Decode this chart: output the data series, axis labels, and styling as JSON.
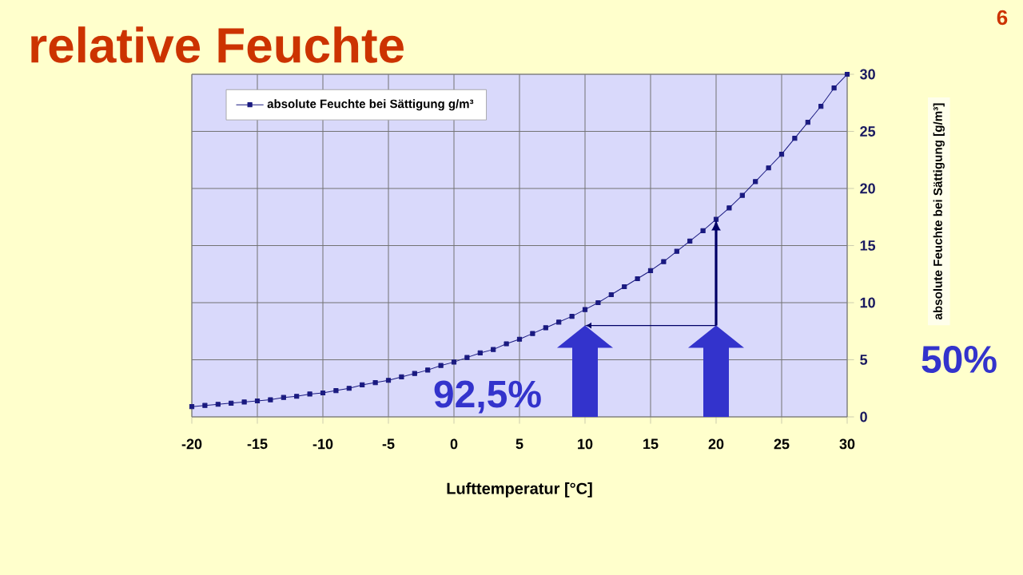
{
  "chart_data": {
    "type": "line",
    "title": "relative Feuchte",
    "xlabel": "Lufttemperatur [°C]",
    "ylabel": "absolute Feuchte bei Sättigung [g/m³]",
    "x": [
      -20,
      -19,
      -18,
      -17,
      -16,
      -15,
      -14,
      -13,
      -12,
      -11,
      -10,
      -9,
      -8,
      -7,
      -6,
      -5,
      -4,
      -3,
      -2,
      -1,
      0,
      1,
      2,
      3,
      4,
      5,
      6,
      7,
      8,
      9,
      10,
      11,
      12,
      13,
      14,
      15,
      16,
      17,
      18,
      19,
      20,
      21,
      22,
      23,
      24,
      25,
      26,
      27,
      28,
      29,
      30
    ],
    "series": [
      {
        "name": "absolute Feuchte bei Sättigung g/m³",
        "color": "#1a1a80",
        "values": [
          0.9,
          1.0,
          1.1,
          1.2,
          1.3,
          1.4,
          1.5,
          1.7,
          1.8,
          2.0,
          2.1,
          2.3,
          2.5,
          2.8,
          3.0,
          3.2,
          3.5,
          3.8,
          4.1,
          4.5,
          4.8,
          5.2,
          5.6,
          5.9,
          6.4,
          6.8,
          7.3,
          7.8,
          8.3,
          8.8,
          9.4,
          10.0,
          10.7,
          11.4,
          12.1,
          12.8,
          13.6,
          14.5,
          15.4,
          16.3,
          17.3,
          18.3,
          19.4,
          20.6,
          21.8,
          23.0,
          24.4,
          25.8,
          27.2,
          28.8,
          30.0
        ]
      }
    ],
    "xlim": [
      -20,
      30
    ],
    "xticks": [
      -20,
      -15,
      -10,
      -5,
      0,
      5,
      10,
      15,
      20,
      25,
      30
    ],
    "ylim": [
      0,
      30
    ],
    "yticks": [
      0,
      5,
      10,
      15,
      20,
      25,
      30
    ],
    "grid": true,
    "legend": "top left",
    "marker": "square",
    "line_style": "solid",
    "annotations": [
      "6",
      "92,5%",
      "50%"
    ]
  }
}
